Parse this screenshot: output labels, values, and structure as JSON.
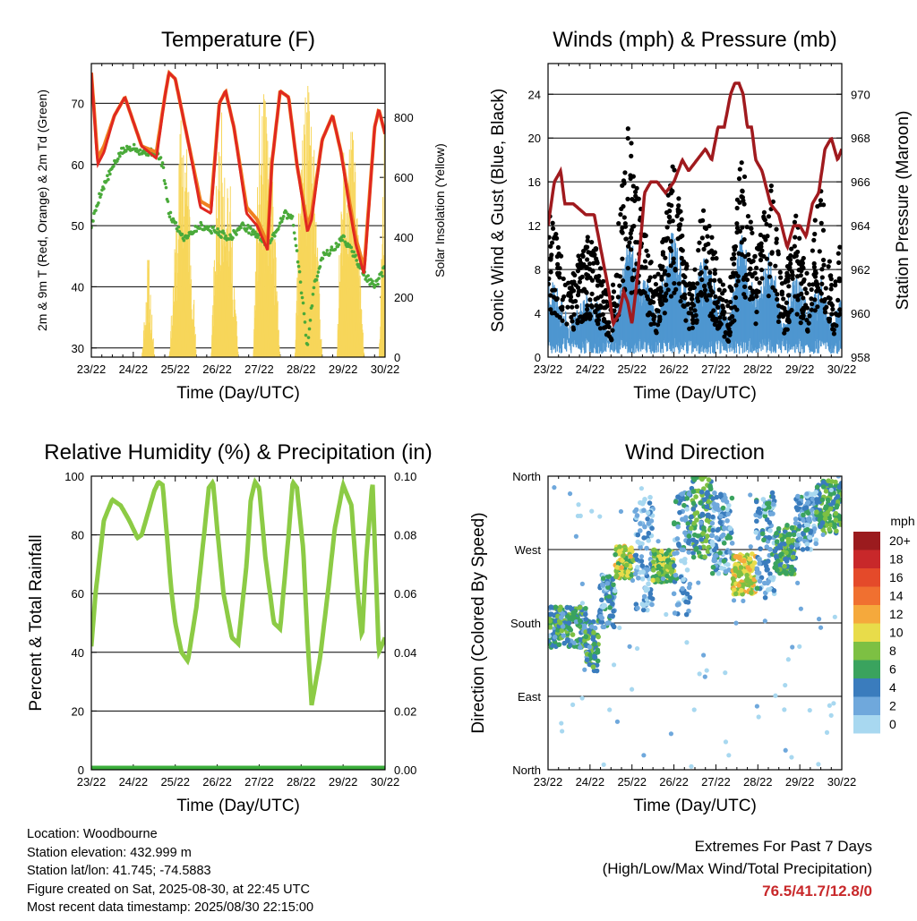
{
  "colors": {
    "t2m": "#e02820",
    "t9m": "#f08020",
    "td": "#4aaa3a",
    "solar": "#f7d65a",
    "gust": "#000000",
    "wind": "#4e96d0",
    "pressure": "#a01a1e",
    "rh": "#8ccb45",
    "precip": "#3aae3a",
    "extreme": "#c8282a"
  },
  "footer": {
    "location": "Location: Woodbourne",
    "elevation": "Station elevation: 432.999 m",
    "latlon": "Station lat/lon: 41.745; -74.5883",
    "created": "Figure created on Sat, 2025-08-30, at 22:45 UTC",
    "recent": "Most recent data timestamp: 2025/08/30 22:15:00"
  },
  "extremes": {
    "title": "Extremes For Past 7 Days",
    "subtitle": "(High/Low/Max Wind/Total Precipitation)",
    "values": "76.5/41.7/12.8/0"
  },
  "chart_data": [
    {
      "type": "line",
      "title": "Temperature (F)",
      "xlabel": "Time (Day/UTC)",
      "ylabel": "2m & 9m T (Red, Orange) & 2m Td (Green)",
      "y2label": "Solar Insolation (Yellow)",
      "x_ticks": [
        "23/22",
        "24/22",
        "25/22",
        "26/22",
        "27/22",
        "28/22",
        "29/22",
        "30/22"
      ],
      "xlim": [
        0,
        7
      ],
      "ylim": [
        28.5,
        76.5
      ],
      "yticks": [
        30,
        40,
        50,
        60,
        70
      ],
      "y2lim": [
        0,
        980
      ],
      "y2ticks": [
        0,
        200,
        400,
        600,
        800
      ],
      "grid": true,
      "series": [
        {
          "name": "2m T",
          "color": "t2m",
          "x": [
            0,
            0.15,
            0.3,
            0.55,
            0.8,
            1.0,
            1.2,
            1.55,
            1.75,
            1.85,
            2.0,
            2.3,
            2.6,
            2.85,
            3.05,
            3.2,
            3.4,
            3.7,
            3.95,
            4.2,
            4.3,
            4.5,
            4.7,
            4.9,
            5.15,
            5.25,
            5.5,
            5.75,
            5.95,
            6.15,
            6.3,
            6.5,
            6.75,
            6.85,
            7.0
          ],
          "values": [
            75,
            60,
            62,
            68,
            71,
            67,
            63,
            61,
            71,
            75,
            74,
            64,
            53,
            52,
            70,
            72,
            66,
            52,
            50,
            46,
            60,
            72,
            71,
            60,
            49,
            51,
            64,
            68,
            62,
            53,
            47,
            42,
            66,
            69,
            65
          ]
        },
        {
          "name": "9m T",
          "color": "t9m",
          "x": [
            0,
            0.15,
            0.3,
            0.55,
            0.8,
            1.0,
            1.2,
            1.55,
            1.75,
            1.85,
            2.0,
            2.3,
            2.6,
            2.85,
            3.05,
            3.2,
            3.4,
            3.7,
            3.95,
            4.2,
            4.3,
            4.5,
            4.7,
            4.9,
            5.15,
            5.25,
            5.5,
            5.75,
            5.95,
            6.15,
            6.3,
            6.5,
            6.75,
            6.85,
            7.0
          ],
          "values": [
            75,
            61,
            63,
            68,
            71,
            67,
            63,
            62,
            71,
            75,
            74,
            64,
            54,
            53,
            70,
            72,
            66,
            53,
            51,
            47,
            60,
            72,
            71,
            60,
            50,
            52,
            64,
            68,
            62,
            54,
            48,
            43,
            66,
            69,
            65
          ]
        },
        {
          "name": "2m Td",
          "color": "td",
          "x": [
            0,
            0.2,
            0.4,
            0.7,
            1.0,
            1.2,
            1.55,
            1.7,
            1.85,
            2.2,
            2.6,
            3.0,
            3.3,
            3.6,
            3.85,
            4.2,
            4.4,
            4.6,
            4.8,
            5.0,
            5.15,
            5.3,
            5.5,
            5.75,
            6.0,
            6.2,
            6.5,
            6.75,
            7.0
          ],
          "values": [
            50,
            55,
            58,
            62,
            63,
            62,
            62,
            60,
            52,
            48,
            50,
            49,
            48,
            50,
            49,
            47,
            49,
            52,
            51,
            40,
            30,
            40,
            45,
            46,
            48,
            46,
            42,
            40,
            43
          ]
        },
        {
          "name": "Solar",
          "color": "solar",
          "axis": "y2",
          "x": [
            1.0,
            1.2,
            1.35,
            1.5,
            1.85,
            2.0,
            2.15,
            2.3,
            2.5,
            2.85,
            3.0,
            3.15,
            3.3,
            3.5,
            3.85,
            4.0,
            4.15,
            4.3,
            4.5,
            4.85,
            5.0,
            5.15,
            5.3,
            5.5,
            5.85,
            6.0,
            6.15,
            6.3,
            6.5,
            6.85,
            7.0
          ],
          "values": [
            0,
            0,
            380,
            0,
            0,
            420,
            900,
            700,
            0,
            0,
            700,
            880,
            600,
            0,
            0,
            850,
            900,
            650,
            0,
            0,
            920,
            950,
            720,
            0,
            0,
            950,
            880,
            650,
            0,
            0,
            920
          ]
        }
      ]
    },
    {
      "type": "scatter",
      "title": "Winds (mph) & Pressure (mb)",
      "xlabel": "Time (Day/UTC)",
      "ylabel": "Sonic Wind & Gust (Blue, Black)",
      "y2label": "Station Pressure (Maroon)",
      "x_ticks": [
        "23/22",
        "24/22",
        "25/22",
        "26/22",
        "27/22",
        "28/22",
        "29/22",
        "30/22"
      ],
      "xlim": [
        0,
        7
      ],
      "ylim": [
        0,
        26.8
      ],
      "yticks": [
        0,
        4,
        8,
        12,
        16,
        20,
        24
      ],
      "y2lim": [
        958,
        971.4
      ],
      "y2ticks": [
        958,
        960,
        962,
        964,
        966,
        968,
        970
      ],
      "grid": true,
      "wind_envelope": {
        "name": "Sonic Wind",
        "color": "wind",
        "x": [
          0,
          0.5,
          1.0,
          1.5,
          1.9,
          2.2,
          2.6,
          3.0,
          3.4,
          3.7,
          4.0,
          4.3,
          4.6,
          4.95,
          5.3,
          5.6,
          5.9,
          6.2,
          6.5,
          6.8,
          7.0
        ],
        "values": [
          8,
          3,
          6,
          2,
          11,
          8,
          4,
          12,
          4,
          9,
          6,
          3,
          11,
          5,
          10,
          3,
          8,
          4,
          7,
          3,
          6
        ]
      },
      "gust_profile": {
        "name": "Gust",
        "color": "gust",
        "x": [
          0,
          0.5,
          1.0,
          1.5,
          1.9,
          2.2,
          2.6,
          3.0,
          3.4,
          3.7,
          4.0,
          4.3,
          4.6,
          4.95,
          5.3,
          5.6,
          5.9,
          6.2,
          6.5,
          6.8,
          7.0
        ],
        "values": [
          12,
          6,
          10,
          4,
          18,
          12,
          6,
          16,
          5,
          12,
          8,
          4,
          16,
          8,
          14,
          5,
          11,
          6,
          14,
          5,
          10
        ]
      },
      "series": [
        {
          "name": "Pressure",
          "color": "pressure",
          "axis": "y2",
          "x": [
            0,
            0.15,
            0.3,
            0.4,
            0.6,
            0.9,
            1.1,
            1.3,
            1.45,
            1.55,
            1.7,
            1.8,
            1.9,
            2.0,
            2.15,
            2.3,
            2.45,
            2.6,
            2.8,
            3.0,
            3.2,
            3.35,
            3.55,
            3.75,
            3.9,
            4.05,
            4.2,
            4.35,
            4.45,
            4.55,
            4.65,
            4.75,
            4.85,
            4.95,
            5.1,
            5.3,
            5.5,
            5.7,
            5.85,
            6.0,
            6.15,
            6.3,
            6.45,
            6.6,
            6.75,
            6.9,
            7.0
          ],
          "values": [
            964,
            966,
            966.5,
            965,
            965,
            964.5,
            964.5,
            962.5,
            961,
            959.5,
            960,
            961,
            960.5,
            959.5,
            962,
            965.5,
            966,
            966,
            965.5,
            966,
            967,
            966.5,
            967,
            967.5,
            967,
            968.5,
            968.5,
            970,
            970.5,
            970.5,
            970,
            968.5,
            968.5,
            967,
            966.5,
            965,
            964.5,
            963,
            964,
            964,
            963.5,
            965,
            965.5,
            967.5,
            968,
            967,
            967.5
          ]
        }
      ]
    },
    {
      "type": "line",
      "title": "Relative Humidity (%) & Precipitation (in)",
      "xlabel": "Time (Day/UTC)",
      "ylabel": "Percent & Total Rainfall",
      "x_ticks": [
        "23/22",
        "24/22",
        "25/22",
        "26/22",
        "27/22",
        "28/22",
        "29/22",
        "30/22"
      ],
      "xlim": [
        0,
        7
      ],
      "ylim": [
        0,
        100
      ],
      "yticks": [
        0,
        20,
        40,
        60,
        80,
        100
      ],
      "y2lim": [
        0,
        0.1
      ],
      "y2ticks": [
        "0.00",
        "0.02",
        "0.04",
        "0.06",
        "0.08",
        "0.10"
      ],
      "grid": true,
      "series": [
        {
          "name": "RH",
          "color": "rh",
          "x": [
            0,
            0.1,
            0.3,
            0.5,
            0.7,
            0.9,
            1.1,
            1.2,
            1.3,
            1.5,
            1.6,
            1.7,
            1.8,
            1.9,
            2.0,
            2.15,
            2.3,
            2.5,
            2.7,
            2.8,
            2.9,
            3.0,
            3.15,
            3.35,
            3.5,
            3.7,
            3.8,
            3.9,
            4.0,
            4.15,
            4.35,
            4.5,
            4.7,
            4.8,
            4.9,
            5.05,
            5.15,
            5.25,
            5.45,
            5.65,
            5.8,
            6.0,
            6.2,
            6.35,
            6.45,
            6.55,
            6.7,
            6.85,
            7.0
          ],
          "values": [
            42,
            60,
            85,
            92,
            90,
            85,
            79,
            80,
            85,
            95,
            98,
            97,
            80,
            62,
            50,
            40,
            37,
            55,
            82,
            96,
            98,
            82,
            60,
            45,
            43,
            70,
            92,
            98,
            96,
            72,
            50,
            48,
            80,
            98,
            96,
            75,
            45,
            22,
            38,
            62,
            82,
            97,
            90,
            60,
            45,
            72,
            98,
            40,
            45
          ]
        },
        {
          "name": "Precipitation",
          "color": "precip",
          "axis": "y2",
          "x": [
            0,
            7
          ],
          "values": [
            0,
            0
          ]
        }
      ]
    },
    {
      "type": "scatter",
      "title": "Wind Direction",
      "xlabel": "Time (Day/UTC)",
      "ylabel": "Direction (Colored By Speed)",
      "x_ticks": [
        "23/22",
        "24/22",
        "25/22",
        "26/22",
        "27/22",
        "28/22",
        "29/22",
        "30/22"
      ],
      "xlim": [
        0,
        7
      ],
      "ylim": [
        0,
        360
      ],
      "yticks": [
        "North",
        "East",
        "South",
        "West",
        "North"
      ],
      "legend": {
        "title": "mph",
        "position": "right",
        "labels": [
          "20+",
          "18",
          "16",
          "14",
          "12",
          "10",
          "8",
          "6",
          "4",
          "2",
          "0"
        ],
        "colors": [
          "#9b1b1e",
          "#c8282a",
          "#e44a2a",
          "#f07030",
          "#f5a93c",
          "#e8dc4a",
          "#7dc043",
          "#3aa35e",
          "#3a7cbd",
          "#6fa8dc",
          "#a8d8f0"
        ]
      },
      "clusters": [
        {
          "x0": 0.0,
          "x1": 0.9,
          "dir_lo": 150,
          "dir_hi": 200,
          "speed": 5
        },
        {
          "x0": 0.9,
          "x1": 1.2,
          "dir_lo": 120,
          "dir_hi": 185,
          "speed": 5
        },
        {
          "x0": 1.2,
          "x1": 1.6,
          "dir_lo": 175,
          "dir_hi": 240,
          "speed": 3
        },
        {
          "x0": 1.6,
          "x1": 2.05,
          "dir_lo": 235,
          "dir_hi": 275,
          "speed": 9
        },
        {
          "x0": 2.05,
          "x1": 2.5,
          "dir_lo": 195,
          "dir_hi": 335,
          "speed": 2
        },
        {
          "x0": 2.5,
          "x1": 3.0,
          "dir_lo": 230,
          "dir_hi": 270,
          "speed": 8
        },
        {
          "x0": 3.0,
          "x1": 3.4,
          "dir_lo": 190,
          "dir_hi": 340,
          "speed": 3
        },
        {
          "x0": 3.4,
          "x1": 3.9,
          "dir_lo": 260,
          "dir_hi": 360,
          "speed": 6
        },
        {
          "x0": 3.9,
          "x1": 4.4,
          "dir_lo": 240,
          "dir_hi": 340,
          "speed": 3
        },
        {
          "x0": 4.4,
          "x1": 4.95,
          "dir_lo": 215,
          "dir_hi": 265,
          "speed": 10
        },
        {
          "x0": 4.95,
          "x1": 5.4,
          "dir_lo": 210,
          "dir_hi": 340,
          "speed": 3
        },
        {
          "x0": 5.4,
          "x1": 5.9,
          "dir_lo": 240,
          "dir_hi": 300,
          "speed": 6
        },
        {
          "x0": 5.9,
          "x1": 6.4,
          "dir_lo": 270,
          "dir_hi": 340,
          "speed": 3
        },
        {
          "x0": 6.4,
          "x1": 7.0,
          "dir_lo": 290,
          "dir_hi": 355,
          "speed": 6
        }
      ]
    }
  ]
}
